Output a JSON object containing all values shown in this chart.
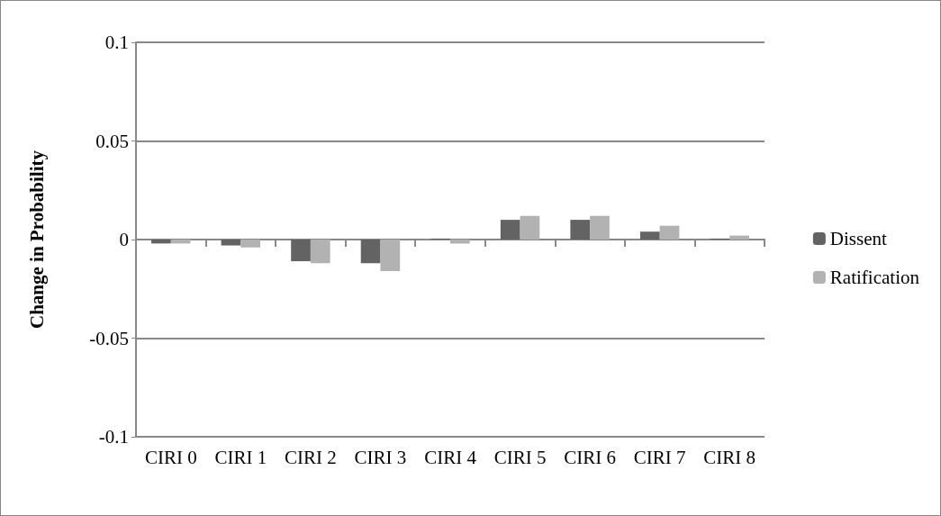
{
  "chart_data": {
    "type": "bar",
    "ylabel": "Change in Probability",
    "categories": [
      "CIRI 0",
      "CIRI 1",
      "CIRI 2",
      "CIRI 3",
      "CIRI 4",
      "CIRI 5",
      "CIRI 6",
      "CIRI 7",
      "CIRI 8"
    ],
    "series": [
      {
        "name": "Dissent",
        "color": "#636363",
        "values": [
          -0.002,
          -0.003,
          -0.011,
          -0.012,
          0.0005,
          0.01,
          0.01,
          0.004,
          0.0005
        ]
      },
      {
        "name": "Ratification",
        "color": "#b2b2b2",
        "values": [
          -0.002,
          -0.004,
          -0.012,
          -0.016,
          -0.002,
          0.012,
          0.012,
          0.007,
          0.002
        ]
      }
    ],
    "ylim": [
      -0.1,
      0.1
    ],
    "yticks": [
      -0.1,
      -0.05,
      0,
      0.05,
      0.1
    ],
    "grid": "y",
    "legend": "right"
  }
}
